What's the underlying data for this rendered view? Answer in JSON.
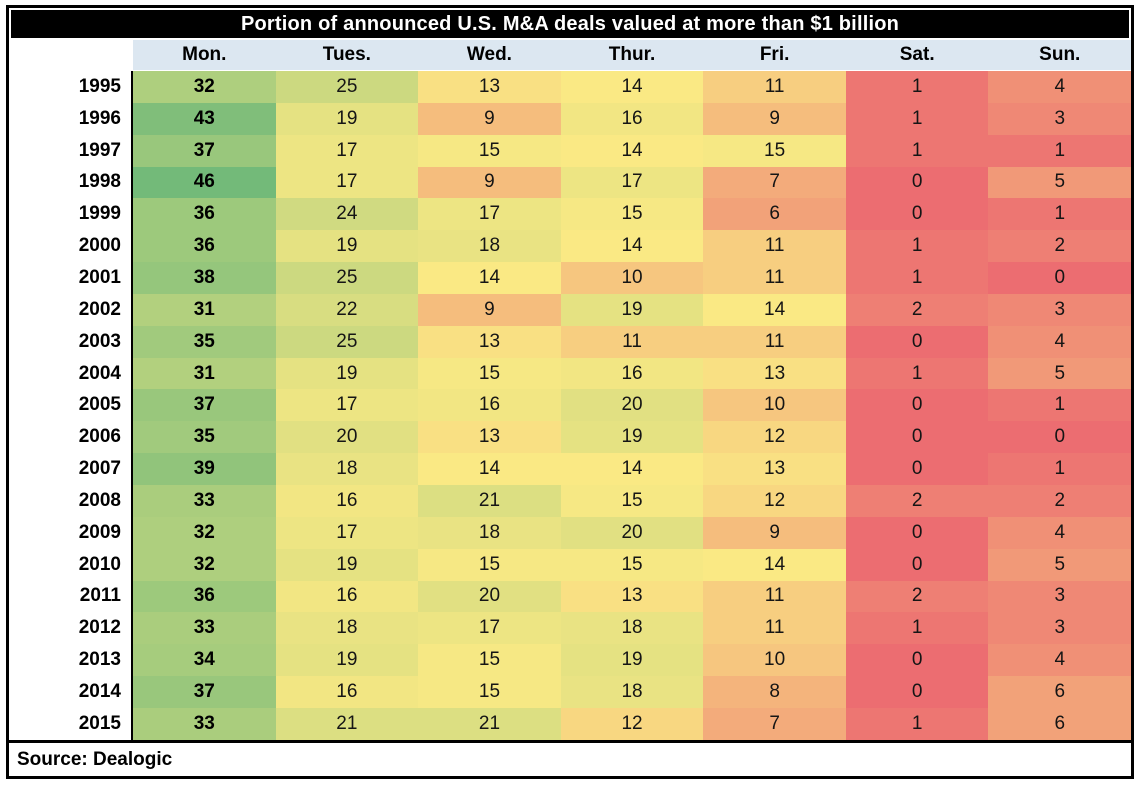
{
  "title": "Portion of announced U.S. M&A deals valued at more than $1 billion",
  "footer": {
    "source_label": "Source: Dealogic"
  },
  "styles": {
    "title_bg": "#000000",
    "title_fg": "#FFFFFF",
    "header_bg": "#DCE7F1",
    "frame_border": "#000000"
  },
  "chart_data": {
    "type": "heatmap",
    "title": "Portion of announced U.S. M&A deals valued at more than $1 billion",
    "source": "Source: Dealogic",
    "columns": [
      "Mon.",
      "Tues.",
      "Wed.",
      "Thur.",
      "Fri.",
      "Sat.",
      "Sun."
    ],
    "rows": [
      "1995",
      "1996",
      "1997",
      "1998",
      "1999",
      "2000",
      "2001",
      "2002",
      "2003",
      "2004",
      "2005",
      "2006",
      "2007",
      "2008",
      "2009",
      "2010",
      "2011",
      "2012",
      "2013",
      "2014",
      "2015"
    ],
    "values": [
      [
        32,
        25,
        13,
        14,
        11,
        1,
        4
      ],
      [
        43,
        19,
        9,
        16,
        9,
        1,
        3
      ],
      [
        37,
        17,
        15,
        14,
        15,
        1,
        1
      ],
      [
        46,
        17,
        9,
        17,
        7,
        0,
        5
      ],
      [
        36,
        24,
        17,
        15,
        6,
        0,
        1
      ],
      [
        36,
        19,
        18,
        14,
        11,
        1,
        2
      ],
      [
        38,
        25,
        14,
        10,
        11,
        1,
        0
      ],
      [
        31,
        22,
        9,
        19,
        14,
        2,
        3
      ],
      [
        35,
        25,
        13,
        11,
        11,
        0,
        4
      ],
      [
        31,
        19,
        15,
        16,
        13,
        1,
        5
      ],
      [
        37,
        17,
        16,
        20,
        10,
        0,
        1
      ],
      [
        35,
        20,
        13,
        19,
        12,
        0,
        0
      ],
      [
        39,
        18,
        14,
        14,
        13,
        0,
        1
      ],
      [
        33,
        16,
        21,
        15,
        12,
        2,
        2
      ],
      [
        32,
        17,
        18,
        20,
        9,
        0,
        4
      ],
      [
        32,
        19,
        15,
        15,
        14,
        0,
        5
      ],
      [
        36,
        16,
        20,
        13,
        11,
        2,
        3
      ],
      [
        33,
        18,
        17,
        18,
        11,
        1,
        3
      ],
      [
        34,
        19,
        15,
        19,
        10,
        0,
        4
      ],
      [
        37,
        16,
        15,
        18,
        8,
        0,
        6
      ],
      [
        33,
        21,
        21,
        12,
        7,
        1,
        6
      ]
    ],
    "value_range": [
      0,
      46
    ],
    "color_scale": {
      "stops": [
        {
          "value": 0,
          "color": "#EC6D71"
        },
        {
          "value": 14,
          "color": "#FAE984"
        },
        {
          "value": 46,
          "color": "#73BA79"
        }
      ]
    }
  }
}
